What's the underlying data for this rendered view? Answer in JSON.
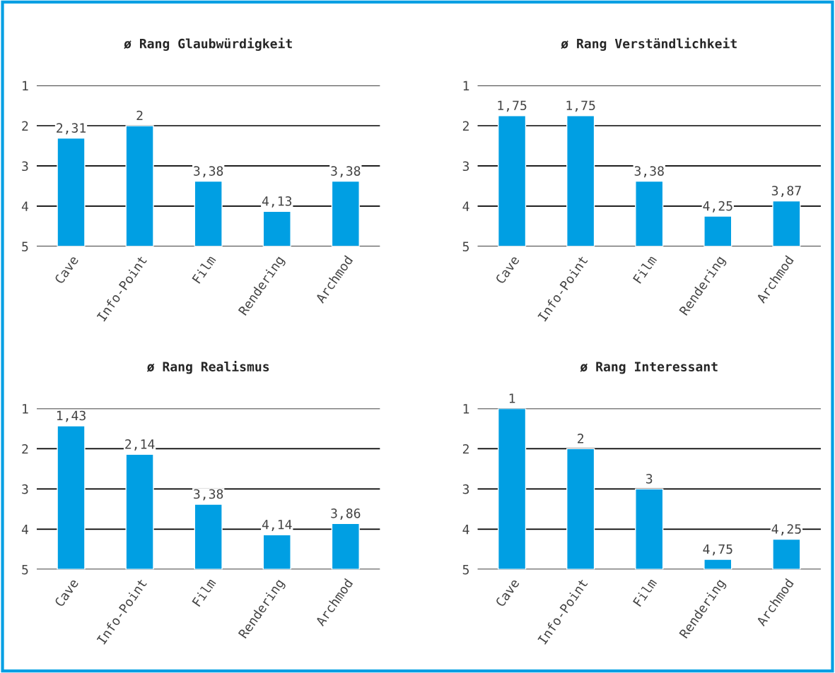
{
  "chart_data": [
    {
      "type": "bar",
      "title": "ø Rang Glaubwürdigkeit",
      "categories": [
        "Cave",
        "Info-Point",
        "Film",
        "Rendering",
        "Archmod"
      ],
      "base": [
        5,
        5,
        5,
        5,
        5
      ],
      "values": [
        -2.69,
        -3,
        -1.62,
        -0.87,
        -1.62
      ],
      "value_labels": [
        "2,31",
        "2",
        "3,38",
        "4,13",
        "3,38"
      ],
      "color": "#009fe3",
      "ylim": [
        5,
        1
      ],
      "yticks": [
        1,
        2,
        3,
        4,
        5
      ],
      "grid": "y"
    },
    {
      "type": "bar",
      "title": "ø Rang Verständlichkeit",
      "categories": [
        "Cave",
        "Info-Point",
        "Film",
        "Rendering",
        "Archmod"
      ],
      "base": [
        5,
        5,
        5,
        5,
        5
      ],
      "values": [
        -3.25,
        -3.25,
        -1.62,
        -0.75,
        -1.13
      ],
      "value_labels": [
        "1,75",
        "1,75",
        "3,38",
        "4,25",
        "3,87"
      ],
      "color": "#009fe3",
      "ylim": [
        5,
        1
      ],
      "yticks": [
        1,
        2,
        3,
        4,
        5
      ],
      "grid": "y"
    },
    {
      "type": "bar",
      "title": "ø Rang Realismus",
      "categories": [
        "Cave",
        "Info-Point",
        "Film",
        "Rendering",
        "Archmod"
      ],
      "base": [
        5,
        5,
        5,
        5,
        5
      ],
      "values": [
        -3.57,
        -2.86,
        -1.62,
        -0.86,
        -1.14
      ],
      "value_labels": [
        "1,43",
        "2,14",
        "3,38",
        "4,14",
        "3,86"
      ],
      "color": "#009fe3",
      "ylim": [
        5,
        1
      ],
      "yticks": [
        1,
        2,
        3,
        4,
        5
      ],
      "grid": "y"
    },
    {
      "type": "bar",
      "title": "ø Rang Interessant",
      "categories": [
        "Cave",
        "Info-Point",
        "Film",
        "Rendering",
        "Archmod"
      ],
      "base": [
        5,
        5,
        5,
        5,
        5
      ],
      "values": [
        -4,
        -3,
        -2,
        -0.25,
        -0.75
      ],
      "value_labels": [
        "1",
        "2",
        "3",
        "4,75",
        "4,25"
      ],
      "color": "#009fe3",
      "ylim": [
        5,
        1
      ],
      "yticks": [
        1,
        2,
        3,
        4,
        5
      ],
      "grid": "y"
    }
  ]
}
